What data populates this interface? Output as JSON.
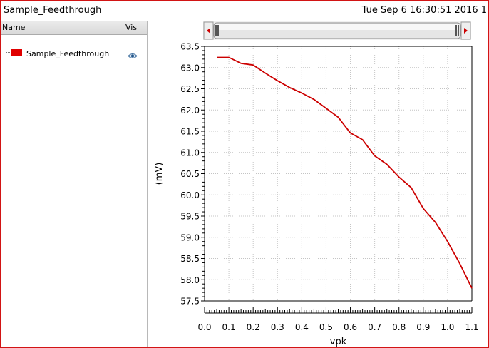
{
  "window": {
    "title": "Sample_Feedthrough",
    "timestamp": "Tue Sep 6 16:30:51 2016  1"
  },
  "sidebar": {
    "col_name": "Name",
    "col_vis": "Vis",
    "signals": [
      {
        "label": "Sample_Feedthrough",
        "color": "#e00000",
        "icon": "eye-icon"
      }
    ]
  },
  "chart_data": {
    "type": "line",
    "title": "",
    "xlabel": "vpk",
    "ylabel": "(mV)",
    "xlim": [
      0.0,
      1.1
    ],
    "ylim": [
      57.5,
      63.5
    ],
    "grid": true,
    "xticks": [
      "0.0",
      "0.1",
      "0.2",
      "0.3",
      "0.4",
      "0.5",
      "0.6",
      "0.7",
      "0.8",
      "0.9",
      "1.0",
      "1.1"
    ],
    "yticks": [
      "57.5",
      "58.0",
      "58.5",
      "59.0",
      "59.5",
      "60.0",
      "60.5",
      "61.0",
      "61.5",
      "62.0",
      "62.5",
      "63.0",
      "63.5"
    ],
    "series": [
      {
        "name": "Sample_Feedthrough",
        "color": "#cc0000",
        "x": [
          0.05,
          0.1,
          0.15,
          0.2,
          0.25,
          0.3,
          0.35,
          0.4,
          0.45,
          0.5,
          0.55,
          0.6,
          0.65,
          0.7,
          0.75,
          0.8,
          0.85,
          0.9,
          0.95,
          1.0,
          1.05,
          1.1
        ],
        "y": [
          63.24,
          63.24,
          63.1,
          63.06,
          62.87,
          62.69,
          62.53,
          62.4,
          62.25,
          62.04,
          61.83,
          61.46,
          61.3,
          60.92,
          60.72,
          60.42,
          60.17,
          59.68,
          59.35,
          58.9,
          58.38,
          57.8
        ]
      }
    ]
  }
}
